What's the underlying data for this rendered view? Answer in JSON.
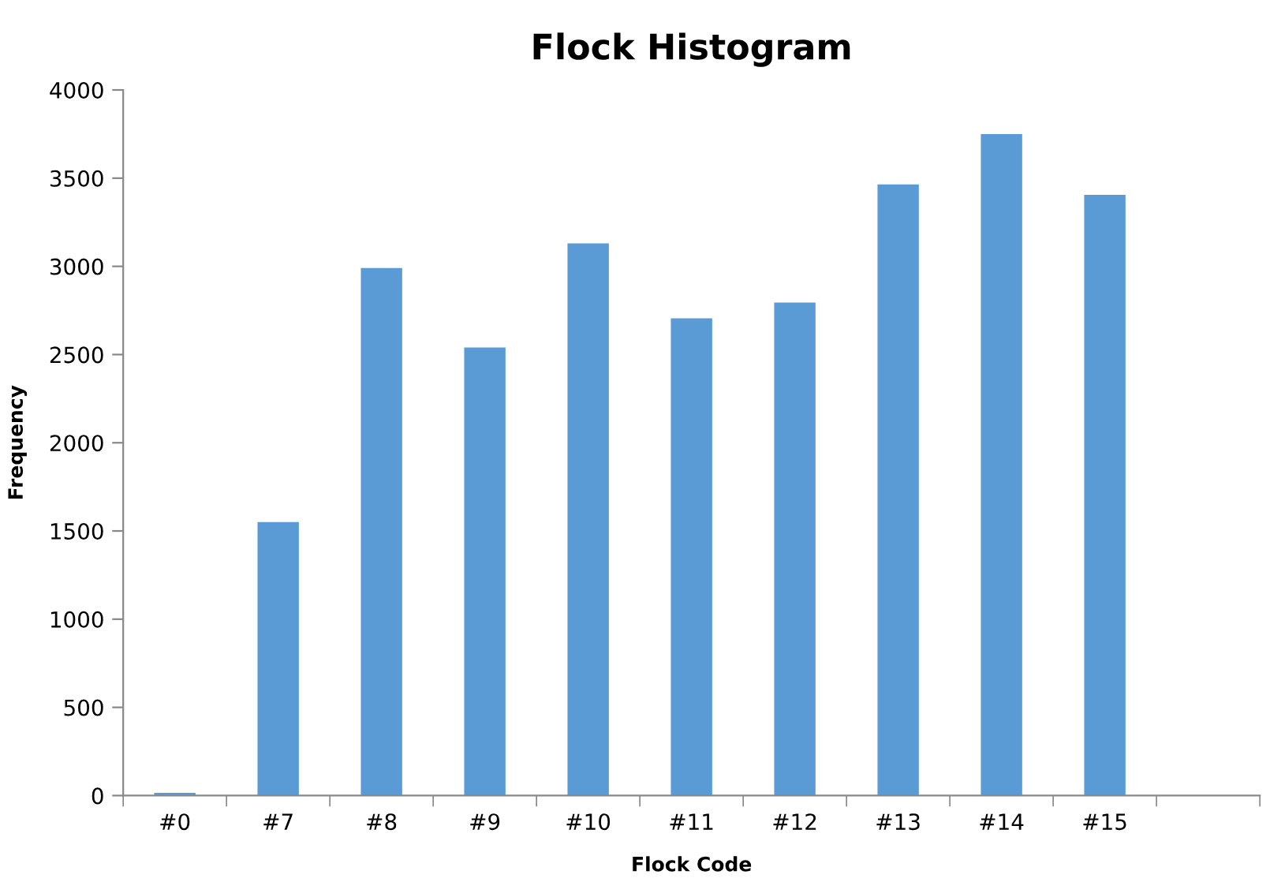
{
  "chart_data": {
    "type": "bar",
    "title": "Flock Histogram",
    "xlabel": "Flock Code",
    "ylabel": "Frequency",
    "categories": [
      "#0",
      "#7",
      "#8",
      "#9",
      "#10",
      "#11",
      "#12",
      "#13",
      "#14",
      "#15",
      null
    ],
    "values": [
      15,
      1550,
      2990,
      2540,
      3130,
      2705,
      2795,
      3465,
      3750,
      3405,
      null
    ],
    "color": "#5b9bd5",
    "ylim": [
      0,
      4000
    ],
    "yticks": [
      0,
      500,
      1000,
      1500,
      2000,
      2500,
      3000,
      3500,
      4000
    ],
    "grid": false,
    "legend": false
  }
}
